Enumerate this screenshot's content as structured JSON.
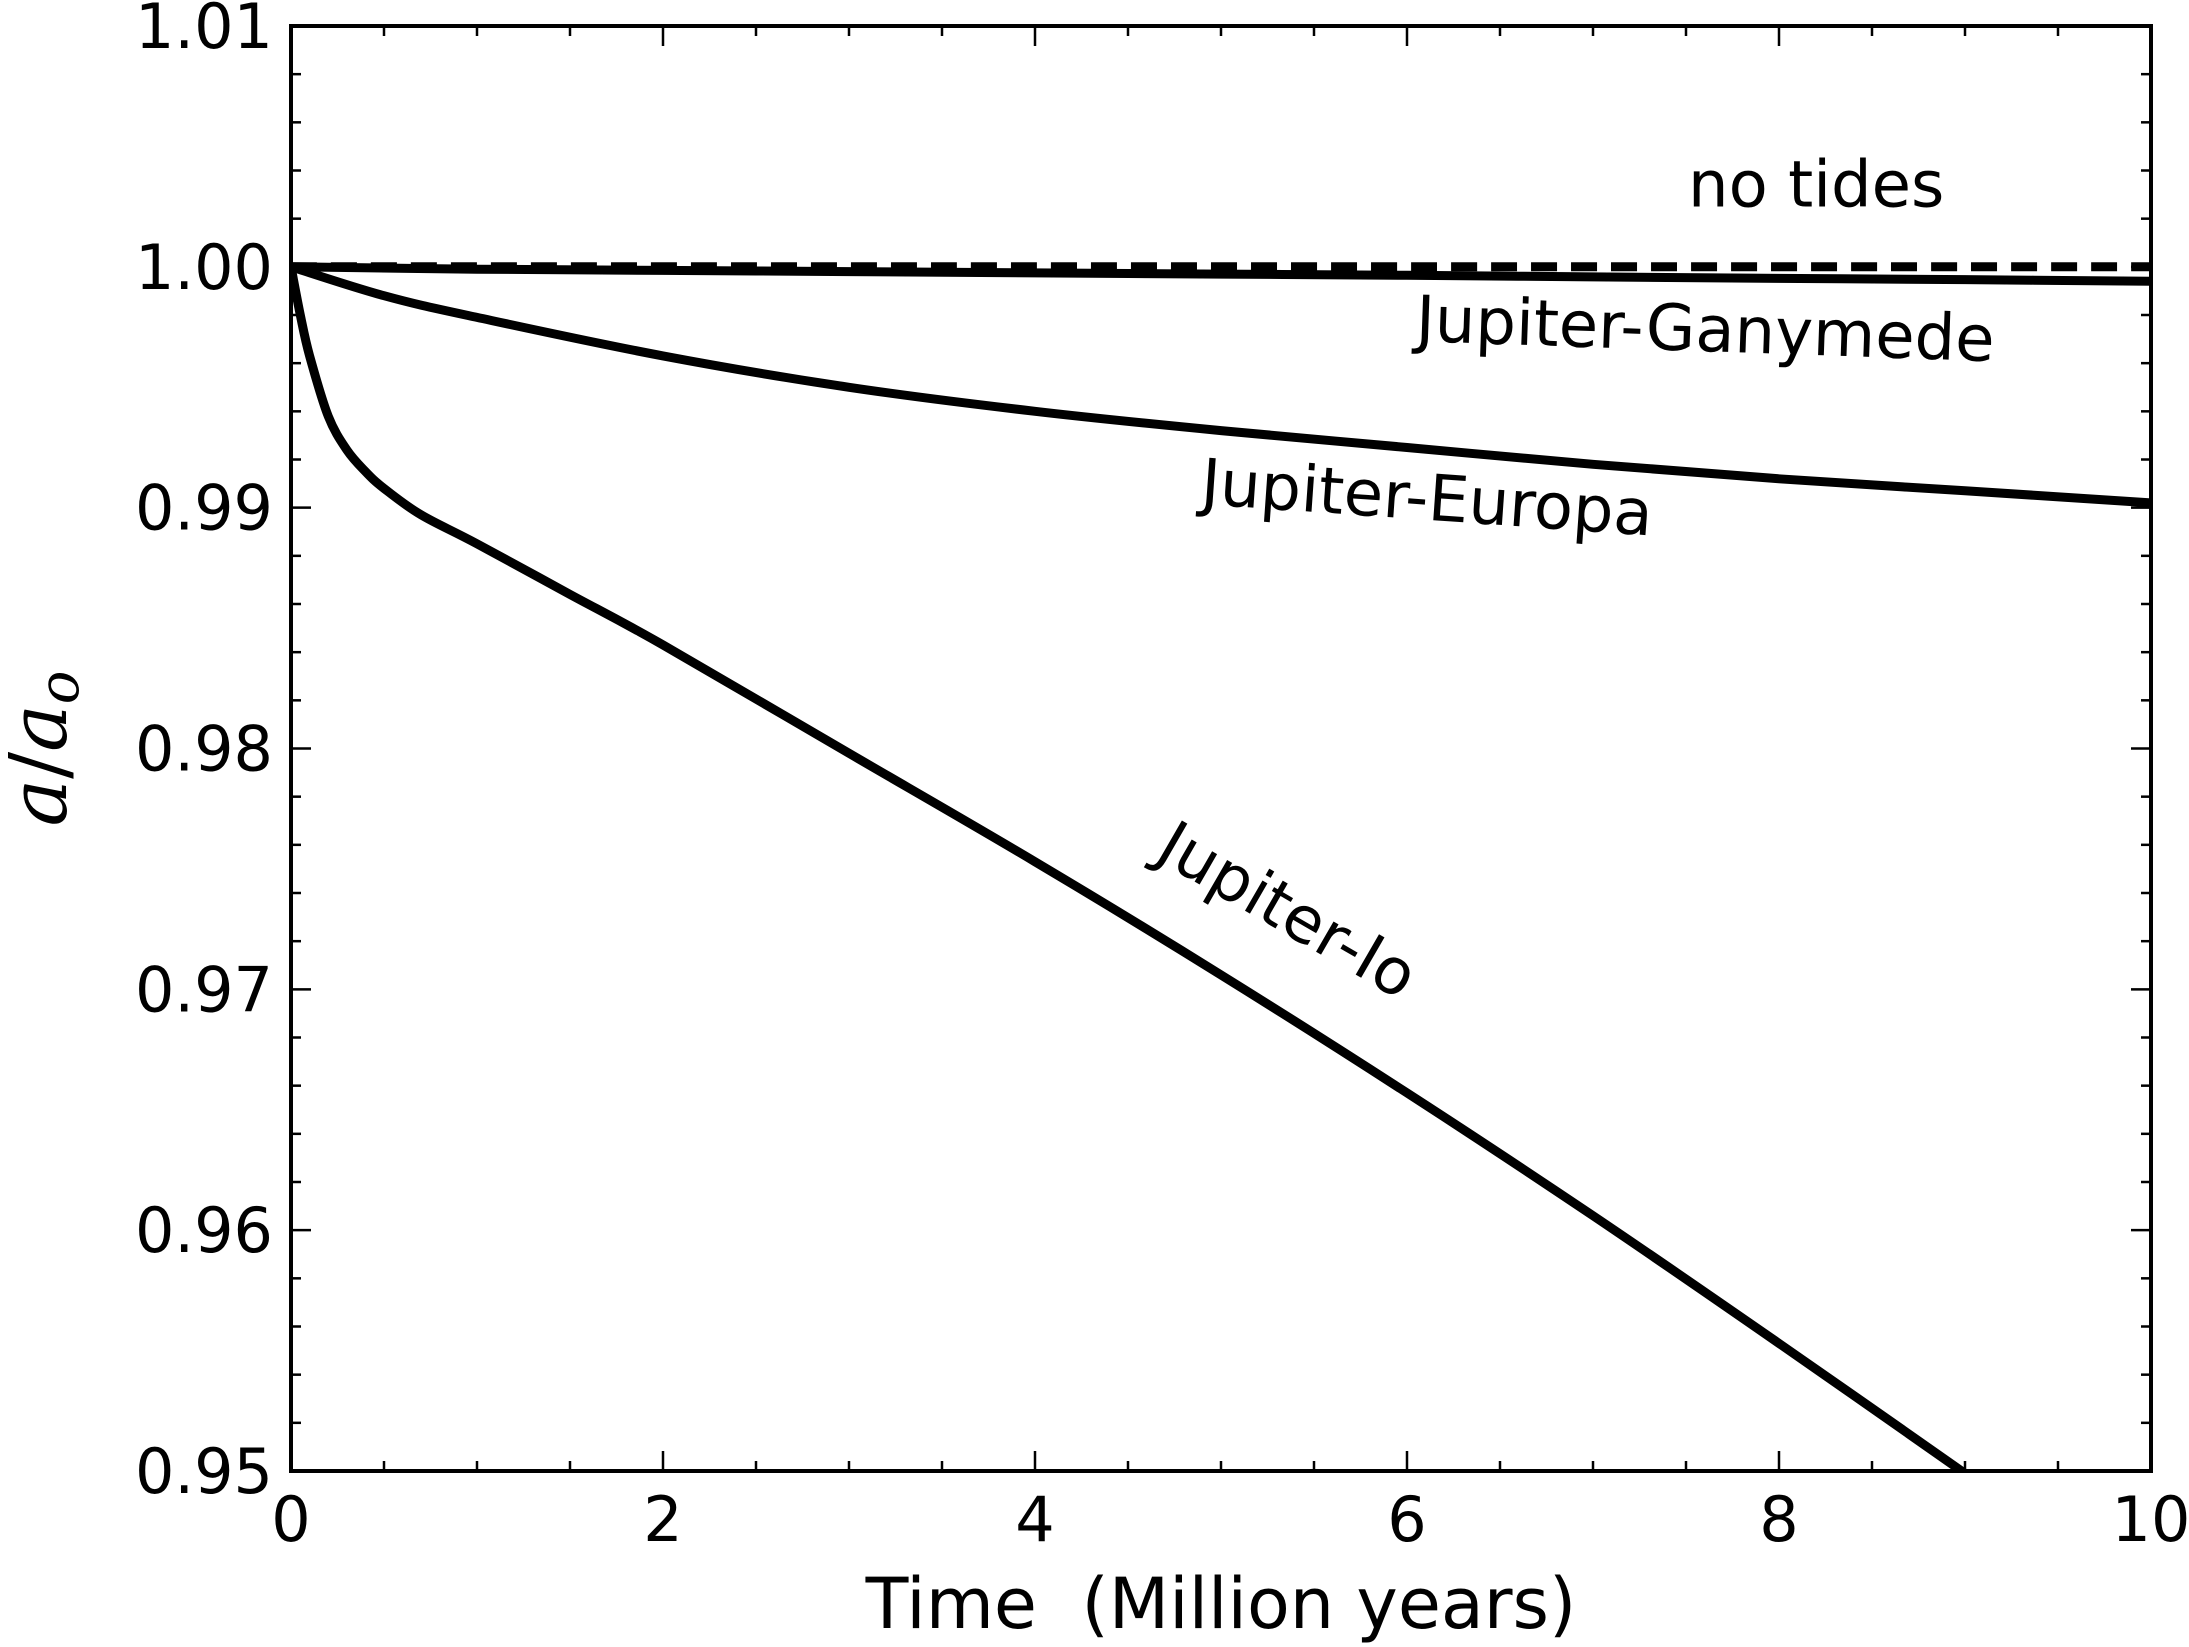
{
  "chart_data": {
    "type": "line",
    "title": "",
    "xlabel": "Time  (Million years)",
    "ylabel": {
      "main": "a",
      "slash": "/",
      "base": "a",
      "sub": "o"
    },
    "xlim": [
      0,
      10
    ],
    "ylim": [
      0.95,
      1.01
    ],
    "xticks": [
      0,
      2,
      4,
      6,
      8,
      10
    ],
    "xtick_labels": [
      "0",
      "2",
      "4",
      "6",
      "8",
      "10"
    ],
    "xminor_step": 0.5,
    "yticks": [
      0.95,
      0.96,
      0.97,
      0.98,
      0.99,
      1.0,
      1.01
    ],
    "ytick_labels": [
      "0.95",
      "0.96",
      "0.97",
      "0.98",
      "0.99",
      "1.00",
      "1.01"
    ],
    "yminor_step": 0.002,
    "grid": false,
    "legend": "none",
    "series": [
      {
        "key": "no-tides",
        "style": "dashed",
        "x": [
          0,
          10
        ],
        "y": [
          1.0,
          1.0
        ]
      },
      {
        "key": "jupiter-ganymede",
        "style": "solid",
        "x": [
          0,
          1,
          2,
          3,
          4,
          5,
          6,
          7,
          8,
          9,
          10
        ],
        "y": [
          1.0,
          0.9999,
          0.99985,
          0.9998,
          0.99975,
          0.9997,
          0.99965,
          0.99958,
          0.99952,
          0.99947,
          0.9994
        ]
      },
      {
        "key": "jupiter-europa",
        "style": "solid",
        "x": [
          0,
          0.5,
          1,
          2,
          3,
          4,
          5,
          6,
          7,
          8,
          9,
          10
        ],
        "y": [
          1.0,
          0.9988,
          0.9979,
          0.9963,
          0.995,
          0.994,
          0.9932,
          0.9925,
          0.9918,
          0.9912,
          0.9907,
          0.9902
        ]
      },
      {
        "key": "jupiter-io",
        "style": "solid",
        "x": [
          0,
          0.05,
          0.1,
          0.2,
          0.3,
          0.4,
          0.5,
          0.7,
          1,
          1.5,
          2,
          3,
          4,
          5,
          6,
          7,
          8,
          9,
          9.2
        ],
        "y": [
          1.0,
          0.998,
          0.9963,
          0.9938,
          0.9924,
          0.9915,
          0.9908,
          0.9897,
          0.9885,
          0.9864,
          0.9843,
          0.9798,
          0.9753,
          0.9706,
          0.9657,
          0.9606,
          0.9553,
          0.9499,
          0.9488
        ]
      }
    ],
    "annotations": [
      {
        "key": "no-tides",
        "text": "no tides",
        "x": 8.2,
        "y": 1.0025,
        "rotate": 0
      },
      {
        "key": "jupiter-ganymede",
        "text": "Jupiter-Ganymede",
        "x": 7.6,
        "y": 0.9965,
        "rotate": 2
      },
      {
        "key": "jupiter-europa",
        "text": "Jupiter-Europa",
        "x": 6.1,
        "y": 0.9895,
        "rotate": 4
      },
      {
        "key": "jupiter-io",
        "text": "Jupiter-Io",
        "x": 5.3,
        "y": 0.9725,
        "rotate": 30
      }
    ]
  }
}
